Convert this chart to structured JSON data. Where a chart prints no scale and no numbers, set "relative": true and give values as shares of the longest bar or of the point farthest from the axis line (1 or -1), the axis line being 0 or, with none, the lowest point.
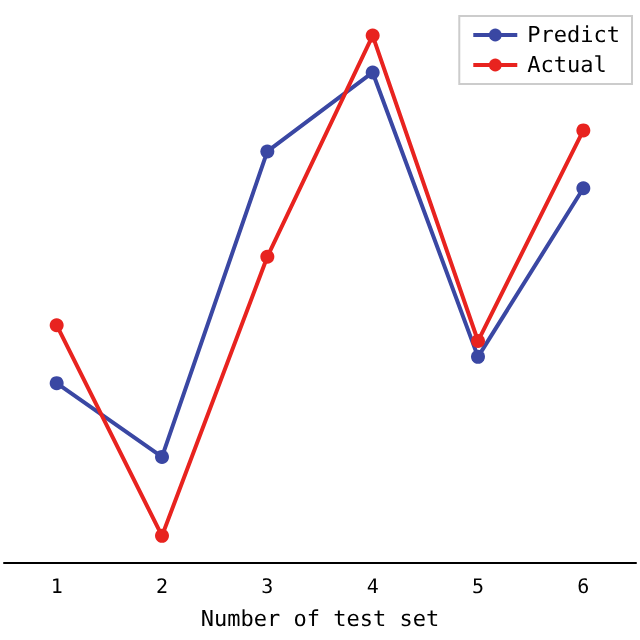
{
  "chart_data": {
    "type": "line",
    "relative": true,
    "xlabel": "Number of test set",
    "categories": [
      "1",
      "2",
      "3",
      "4",
      "5",
      "6"
    ],
    "marker": "circle",
    "legend": "top right",
    "series": [
      {
        "name": "Predict",
        "color": "#3a47a3",
        "values": [
          0.34,
          0.2,
          0.78,
          0.93,
          0.39,
          0.71
        ]
      },
      {
        "name": "Actual",
        "color": "#e8231f",
        "values": [
          0.45,
          0.05,
          0.58,
          1.0,
          0.42,
          0.82
        ]
      }
    ]
  }
}
